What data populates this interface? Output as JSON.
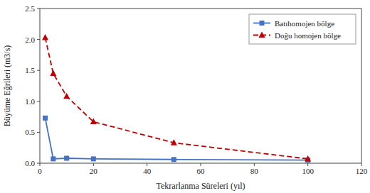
{
  "chart_data": {
    "type": "line",
    "x": [
      2,
      5,
      10,
      20,
      50,
      100
    ],
    "series": [
      {
        "name": "Batıhomojen bölge",
        "color": "#4472C4",
        "marker": "square",
        "line_style": "solid",
        "values": [
          0.73,
          0.07,
          0.08,
          0.07,
          0.06,
          0.05
        ]
      },
      {
        "name": "Doğu homojen bölge",
        "color": "#C00000",
        "marker": "triangle",
        "line_style": "dashed",
        "values": [
          2.03,
          1.45,
          1.08,
          0.67,
          0.33,
          0.07
        ]
      }
    ],
    "xlabel": "Tekrarlanma Süreleri (yıl)",
    "ylabel": "Büyüme Eğrileri (m3/s)",
    "xlim": [
      0,
      120
    ],
    "ylim": [
      0,
      2.5
    ],
    "xticks": [
      0,
      20,
      40,
      60,
      80,
      100,
      120
    ],
    "yticks": [
      {
        "value": 0,
        "label": "0.0"
      },
      0.5,
      {
        "value": 1.0,
        "label": "1.0"
      },
      1.5,
      {
        "value": 2.0,
        "label": "2.0"
      },
      2.5
    ],
    "grid": false,
    "legend": "upper right"
  }
}
